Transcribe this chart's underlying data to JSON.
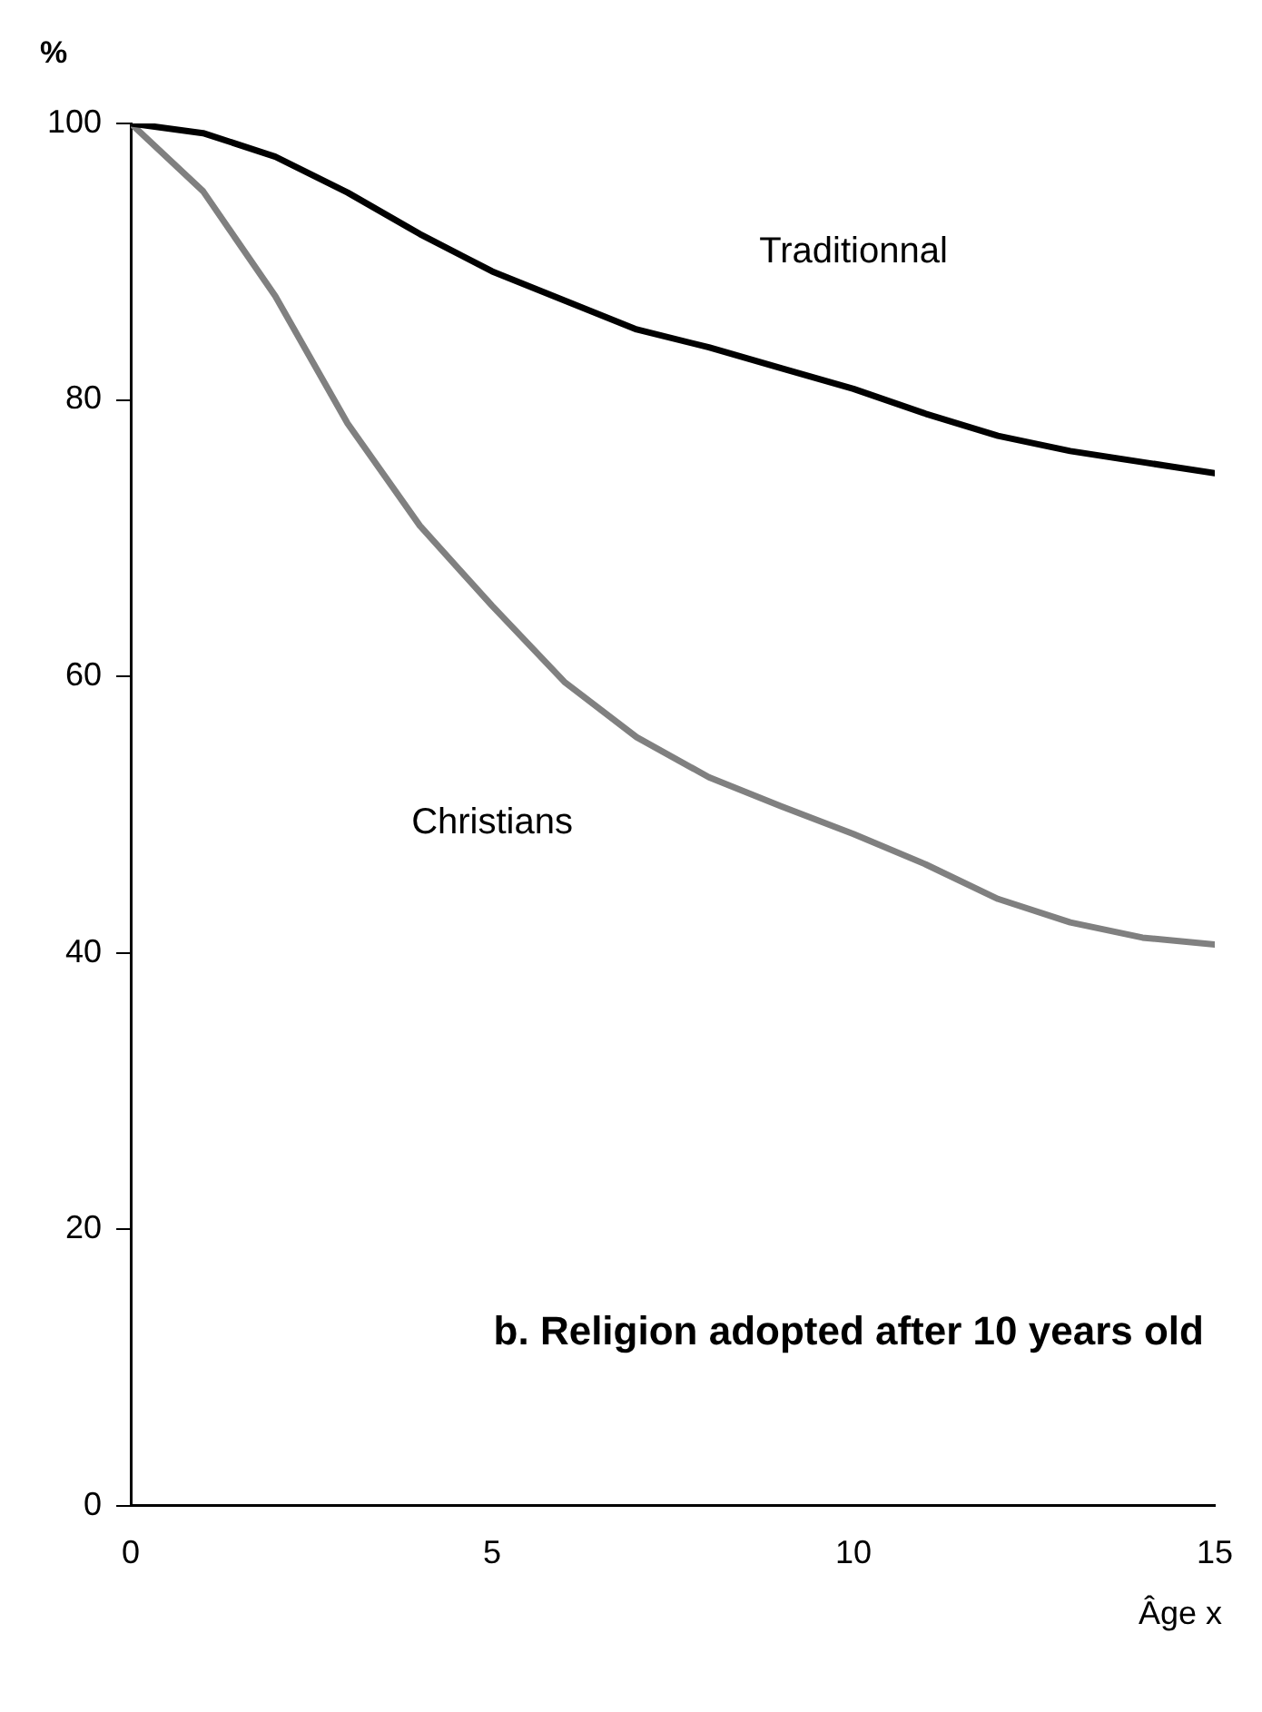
{
  "chart_data": {
    "type": "line",
    "title": "b. Religion adopted after 10 years old",
    "xlabel": "Âge x",
    "ylabel": "%",
    "x": [
      0,
      1,
      2,
      3,
      4,
      5,
      6,
      7,
      8,
      9,
      10,
      11,
      12,
      13,
      14,
      15
    ],
    "series": [
      {
        "name": "Traditionnal",
        "color": "#000000",
        "values": [
          100,
          99.3,
          97.6,
          95,
          92,
          89.3,
          87.2,
          85.1,
          83.8,
          82.3,
          80.8,
          79,
          77.4,
          76.3,
          75.5,
          74.7
        ]
      },
      {
        "name": "Christians",
        "color": "#808080",
        "values": [
          100,
          95.1,
          87.5,
          78.3,
          70.9,
          65.1,
          59.6,
          55.6,
          52.7,
          50.6,
          48.6,
          46.4,
          43.9,
          42.2,
          41.1,
          40.6
        ]
      }
    ],
    "xlim": [
      0,
      15
    ],
    "xticks": [
      0,
      5,
      10,
      15
    ],
    "ylim": [
      0,
      100
    ],
    "yticks": [
      0,
      20,
      40,
      60,
      80,
      100
    ],
    "grid": false,
    "legend": false,
    "marker": "none",
    "line_style": "solid"
  }
}
